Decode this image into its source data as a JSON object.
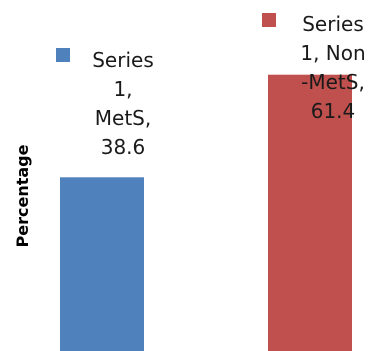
{
  "chart_data": {
    "type": "bar",
    "ylabel": "Percentage",
    "ylim": [
      0,
      70
    ],
    "grid": false,
    "series": [
      {
        "name": "Series 1",
        "categories": [
          "MetS",
          "Non-MetS"
        ],
        "values": [
          38.6,
          61.4
        ],
        "colors": [
          "#4f81bd",
          "#c0504d"
        ],
        "data_labels": [
          [
            "Series",
            "1,",
            "MetS,",
            "38.6"
          ],
          [
            "Series",
            "1, Non",
            "-MetS,",
            "61.4"
          ]
        ]
      }
    ]
  }
}
